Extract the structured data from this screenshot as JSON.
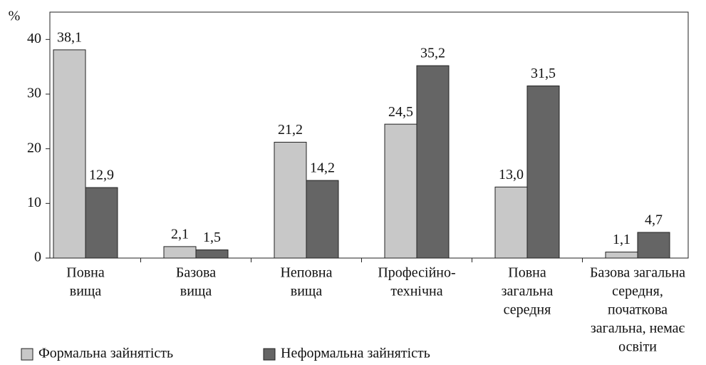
{
  "chart_data": {
    "type": "bar",
    "y_label": "%",
    "categories": [
      [
        "Повна",
        "вища"
      ],
      [
        "Базова",
        "вища"
      ],
      [
        "Неповна",
        "вища"
      ],
      [
        "Професійно-",
        "технічна"
      ],
      [
        "Повна",
        "загальна",
        "середня"
      ],
      [
        "Базова загальна",
        "середня,",
        "початкова",
        "загальна, немає",
        "освіти"
      ]
    ],
    "series": [
      {
        "name": "Формальна зайнятість",
        "color": "#c8c8c8",
        "values": [
          38.1,
          2.1,
          21.2,
          24.5,
          13.0,
          1.1
        ],
        "value_labels": [
          "38,1",
          "2,1",
          "21,2",
          "24,5",
          "13,0",
          "1,1"
        ]
      },
      {
        "name": "Неформальна зайнятість",
        "color": "#656565",
        "values": [
          12.9,
          1.5,
          14.2,
          35.2,
          31.5,
          4.7
        ],
        "value_labels": [
          "12,9",
          "1,5",
          "14,2",
          "35,2",
          "31,5",
          "4,7"
        ]
      }
    ],
    "ylim": [
      0,
      45
    ],
    "yticks": [
      0,
      10,
      20,
      30,
      40
    ],
    "legend": "bottom-left"
  }
}
